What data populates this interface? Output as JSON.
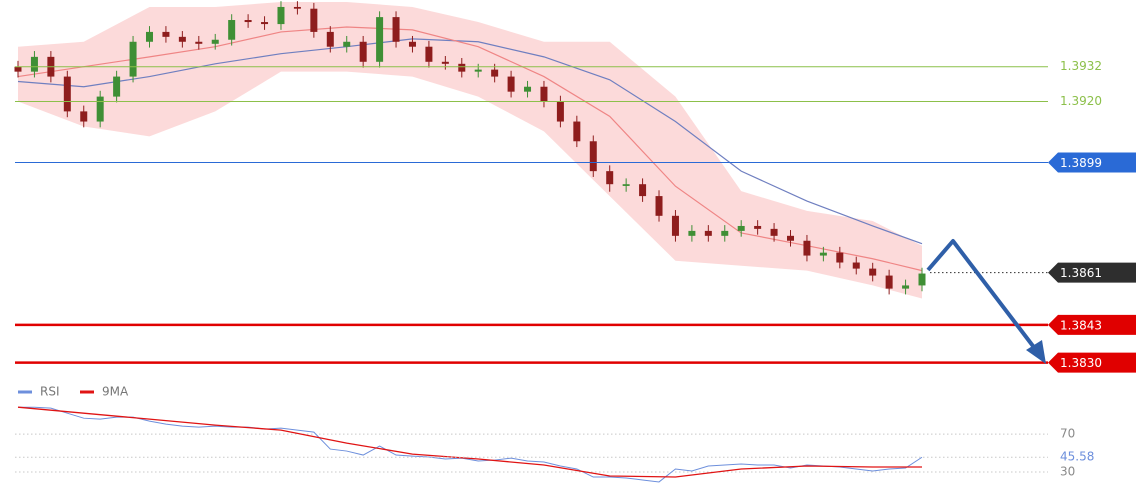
{
  "chart_data": [
    {
      "type": "candlestick",
      "ylim": [
        1.3824,
        1.3955
      ],
      "bull_color": "#3f8f35",
      "bear_color": "#8e1d1d",
      "open": [
        1.3932,
        1.39303,
        1.39354,
        1.39286,
        1.39166,
        1.39131,
        1.39217,
        1.39286,
        1.39406,
        1.3944,
        1.39423,
        1.39406,
        1.39399,
        1.39413,
        1.39481,
        1.39474,
        1.39467,
        1.39526,
        1.3952,
        1.3944,
        1.39389,
        1.39406,
        1.39337,
        1.39491,
        1.39406,
        1.39389,
        1.39337,
        1.3933,
        1.39303,
        1.3931,
        1.39286,
        1.39234,
        1.39251,
        1.392,
        1.39131,
        1.39063,
        1.3896,
        1.38909,
        1.38915,
        1.38874,
        1.38806,
        1.38737,
        1.38754,
        1.38737,
        1.38754,
        1.38771,
        1.38761,
        1.38737,
        1.3872,
        1.38669,
        1.38679,
        1.38645,
        1.38624,
        1.386,
        1.38555,
        1.38566
      ],
      "high": [
        1.3934,
        1.39374,
        1.39374,
        1.39306,
        1.39186,
        1.39237,
        1.39306,
        1.39426,
        1.3946,
        1.3946,
        1.39443,
        1.39426,
        1.39433,
        1.39501,
        1.39501,
        1.39494,
        1.39546,
        1.39546,
        1.3954,
        1.3946,
        1.39426,
        1.39426,
        1.39511,
        1.39511,
        1.39426,
        1.39409,
        1.39357,
        1.3935,
        1.3933,
        1.3933,
        1.39306,
        1.39271,
        1.39271,
        1.3922,
        1.39151,
        1.39083,
        1.3898,
        1.38935,
        1.38935,
        1.38894,
        1.38826,
        1.38774,
        1.38774,
        1.38774,
        1.38791,
        1.38791,
        1.38781,
        1.38757,
        1.3874,
        1.38699,
        1.38699,
        1.38665,
        1.38644,
        1.3862,
        1.38586,
        1.38627
      ],
      "low": [
        1.39283,
        1.39283,
        1.39266,
        1.39146,
        1.39111,
        1.39111,
        1.39197,
        1.39266,
        1.39386,
        1.39403,
        1.39386,
        1.39379,
        1.39379,
        1.39393,
        1.39454,
        1.39447,
        1.39447,
        1.395,
        1.3942,
        1.39369,
        1.39369,
        1.39317,
        1.39317,
        1.39386,
        1.39369,
        1.39317,
        1.3931,
        1.39283,
        1.39283,
        1.39266,
        1.39214,
        1.39214,
        1.3918,
        1.39111,
        1.39043,
        1.3894,
        1.38889,
        1.38889,
        1.38854,
        1.38786,
        1.38717,
        1.38717,
        1.38717,
        1.38717,
        1.38734,
        1.38741,
        1.38717,
        1.387,
        1.38649,
        1.38649,
        1.38625,
        1.38604,
        1.3858,
        1.38535,
        1.38535,
        1.38546
      ],
      "close": [
        1.39303,
        1.39354,
        1.39286,
        1.39166,
        1.39131,
        1.39217,
        1.39286,
        1.39406,
        1.3944,
        1.39423,
        1.39406,
        1.39399,
        1.39413,
        1.39481,
        1.39474,
        1.39467,
        1.39526,
        1.3952,
        1.3944,
        1.39389,
        1.39406,
        1.39337,
        1.39491,
        1.39406,
        1.39389,
        1.39337,
        1.3933,
        1.39303,
        1.3931,
        1.39286,
        1.39234,
        1.39251,
        1.392,
        1.39131,
        1.39063,
        1.3896,
        1.38915,
        1.38915,
        1.38874,
        1.38806,
        1.38737,
        1.38754,
        1.38737,
        1.38754,
        1.38771,
        1.38761,
        1.38737,
        1.3872,
        1.38669,
        1.38679,
        1.38645,
        1.38624,
        1.386,
        1.38555,
        1.38566,
        1.38607
      ],
      "overlays": {
        "x": [
          0,
          4,
          8,
          12,
          16,
          20,
          24,
          28,
          32,
          36,
          40,
          44,
          48,
          52,
          55
        ],
        "band_color": "#fbd3d3",
        "fast_color": "#ef8585",
        "slow_color": "#6f7fc0",
        "band_upper": [
          1.39389,
          1.39406,
          1.39526,
          1.39526,
          1.39543,
          1.39543,
          1.39526,
          1.39474,
          1.39406,
          1.39406,
          1.39217,
          1.38891,
          1.38823,
          1.38788,
          1.38703
        ],
        "band_lower": [
          1.392,
          1.39114,
          1.3908,
          1.39166,
          1.39303,
          1.39303,
          1.39286,
          1.39217,
          1.39097,
          1.38874,
          1.38651,
          1.38634,
          1.38617,
          1.38566,
          1.38521
        ],
        "fast_ma": [
          1.39286,
          1.3932,
          1.39354,
          1.39389,
          1.3944,
          1.39457,
          1.39447,
          1.39389,
          1.39286,
          1.39149,
          1.38908,
          1.38747,
          1.38703,
          1.38658,
          1.38617
        ],
        "slow_ma": [
          1.39269,
          1.39251,
          1.39286,
          1.3933,
          1.39365,
          1.39389,
          1.39416,
          1.39406,
          1.39354,
          1.39275,
          1.39131,
          1.3896,
          1.38857,
          1.38771,
          1.3871
        ]
      },
      "levels": [
        {
          "value": 1.3932,
          "color": "#8cc04a",
          "line_style": "solid",
          "line_width": 1,
          "tag": false
        },
        {
          "value": 1.392,
          "label": "1.3920",
          "color": "#8cc04a",
          "line_style": "solid",
          "line_width": 1,
          "tag": false
        },
        {
          "value": 1.3899,
          "color": "#2a6ad6",
          "line_style": "solid",
          "line_width": 1,
          "tag": true
        },
        {
          "value": 1.3861,
          "color": "#2e2e2e",
          "line_style": "dotted",
          "line_width": 1,
          "tag": true
        },
        {
          "value": 1.3843,
          "color": "#e00000",
          "line_style": "solid",
          "line_width": 2.5,
          "tag": true
        },
        {
          "value": 1.383,
          "label": "1.3830",
          "color": "#e00000",
          "line_style": "solid",
          "line_width": 2.5,
          "tag": true
        }
      ]
    },
    {
      "type": "line",
      "ylim": [
        11,
        106
      ],
      "yticks": [
        30,
        70
      ],
      "series": [
        {
          "name": "RSI",
          "color": "#6d8fdc",
          "values": [
            98.4,
            98.4,
            97.4,
            92.1,
            86.8,
            85.8,
            87.9,
            87.9,
            83.7,
            80.5,
            78.4,
            77.4,
            78.4,
            77.4,
            77.4,
            75.3,
            76.3,
            74.2,
            72.1,
            54.2,
            52.1,
            47.9,
            57.4,
            47.9,
            46.8,
            45.8,
            43.7,
            44.7,
            41.6,
            42.6,
            44.7,
            41.6,
            40.5,
            36.3,
            33.2,
            24.7,
            24.7,
            23.7,
            21.6,
            19.5,
            33.2,
            31.1,
            36.3,
            37.4,
            38.4,
            37.4,
            37.4,
            34.2,
            37.4,
            36.3,
            35.3,
            33.2,
            31.1,
            33.2,
            34.2,
            45.58
          ]
        },
        {
          "name": "9MA",
          "color": "#e01414",
          "x": [
            0,
            4,
            8,
            12,
            16,
            20,
            24,
            28,
            32,
            36,
            40,
            44,
            48,
            52,
            55
          ],
          "values": [
            98.4,
            92.1,
            85.8,
            79.5,
            74.2,
            60.5,
            48.9,
            43.7,
            37.4,
            25.8,
            24.7,
            33.2,
            36.3,
            35.3,
            35.3
          ]
        }
      ]
    }
  ]
}
